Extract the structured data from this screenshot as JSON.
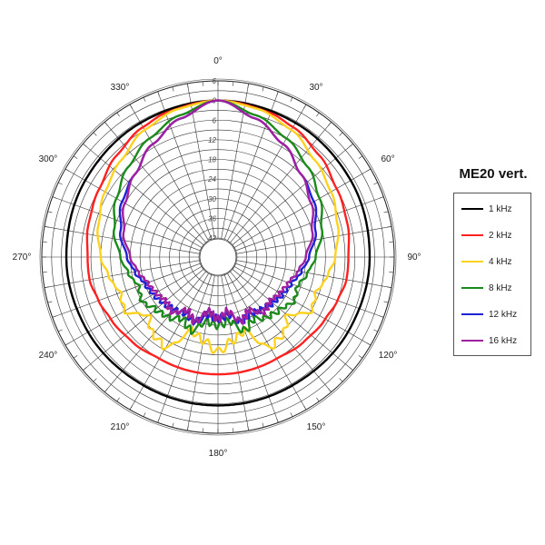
{
  "chart_data": {
    "type": "polar-line",
    "title": "ME20 vert.",
    "angle_labels": [
      "0°",
      "30°",
      "60°",
      "90°",
      "120°",
      "150°",
      "180°",
      "210°",
      "240°",
      "270°",
      "300°",
      "330°"
    ],
    "radial_labels": [
      "6",
      "0",
      "6",
      "12",
      "18",
      "24",
      "30",
      "36",
      "42"
    ],
    "radial_range_db": [
      -42,
      6
    ],
    "grid": true,
    "legend_position": "right",
    "series": [
      {
        "name": "1 kHz",
        "color": "#000000",
        "angles": [
          0,
          30,
          60,
          90,
          120,
          150,
          180,
          210,
          240,
          270,
          300,
          330,
          360
        ],
        "level_db": [
          0,
          -0.5,
          -1,
          -1.5,
          -2,
          -2.5,
          -2.5,
          -2.5,
          -2,
          -1.5,
          -1,
          -0.5,
          0
        ]
      },
      {
        "name": "2 kHz",
        "color": "#ff2020",
        "angles": [
          0,
          20,
          30,
          45,
          60,
          75,
          90,
          100,
          110,
          120,
          135,
          150,
          165,
          180,
          195,
          210,
          225,
          240,
          250,
          260,
          270,
          285,
          300,
          315,
          330,
          340,
          360
        ],
        "level_db": [
          0,
          -1,
          -2,
          -4,
          -6,
          -7,
          -8,
          -8,
          -9,
          -10,
          -11,
          -12,
          -12,
          -12,
          -12,
          -12,
          -11,
          -10,
          -9,
          -8,
          -8,
          -7,
          -6,
          -4,
          -2,
          -1,
          0
        ]
      },
      {
        "name": "4 kHz",
        "color": "#ffd21f",
        "angles": [
          0,
          15,
          30,
          45,
          60,
          75,
          90,
          100,
          110,
          120,
          130,
          140,
          150,
          160,
          170,
          180,
          190,
          200,
          210,
          220,
          230,
          240,
          250,
          260,
          270,
          285,
          300,
          315,
          330,
          345,
          360
        ],
        "level_db": [
          0,
          -1,
          -3,
          -6,
          -8,
          -10,
          -12,
          -14,
          -16,
          -15,
          -20,
          -17,
          -16,
          -24,
          -22,
          -19,
          -22,
          -24,
          -16,
          -17,
          -20,
          -15,
          -16,
          -14,
          -12,
          -10,
          -8,
          -6,
          -3,
          -1,
          0
        ]
      },
      {
        "name": "8 kHz",
        "color": "#1a8a1a",
        "angles": [
          0,
          15,
          30,
          45,
          60,
          75,
          90,
          100,
          110,
          120,
          130,
          140,
          150,
          160,
          170,
          180,
          190,
          200,
          210,
          220,
          230,
          240,
          250,
          260,
          270,
          285,
          300,
          315,
          330,
          345,
          360
        ],
        "level_db": [
          0,
          -3,
          -6,
          -9,
          -12,
          -15,
          -18,
          -20,
          -22,
          -21,
          -23,
          -24,
          -26,
          -24,
          -28,
          -27,
          -28,
          -24,
          -26,
          -24,
          -23,
          -21,
          -22,
          -20,
          -18,
          -15,
          -12,
          -9,
          -6,
          -3,
          0
        ]
      },
      {
        "name": "12 kHz",
        "color": "#1e22d6",
        "angles": [
          0,
          15,
          30,
          45,
          60,
          75,
          90,
          100,
          110,
          120,
          130,
          140,
          150,
          160,
          170,
          180,
          190,
          200,
          210,
          220,
          230,
          240,
          250,
          260,
          270,
          285,
          300,
          315,
          330,
          345,
          360
        ],
        "level_db": [
          0,
          -4,
          -8,
          -12,
          -14,
          -17,
          -20,
          -22,
          -24,
          -25,
          -26,
          -27,
          -28,
          -27,
          -30,
          -29,
          -30,
          -27,
          -28,
          -27,
          -26,
          -25,
          -24,
          -22,
          -20,
          -17,
          -14,
          -12,
          -8,
          -4,
          0
        ]
      },
      {
        "name": "16 kHz",
        "color": "#a020a0",
        "angles": [
          0,
          15,
          30,
          45,
          60,
          75,
          90,
          100,
          110,
          120,
          130,
          140,
          150,
          160,
          170,
          180,
          190,
          200,
          210,
          220,
          230,
          240,
          250,
          260,
          270,
          285,
          300,
          315,
          330,
          345,
          360
        ],
        "level_db": [
          0,
          -4,
          -8,
          -12,
          -15,
          -18,
          -21,
          -23,
          -25,
          -26,
          -27,
          -26,
          -29,
          -27,
          -31,
          -29,
          -31,
          -27,
          -29,
          -26,
          -27,
          -26,
          -25,
          -23,
          -21,
          -18,
          -15,
          -12,
          -8,
          -4,
          0
        ]
      }
    ]
  }
}
